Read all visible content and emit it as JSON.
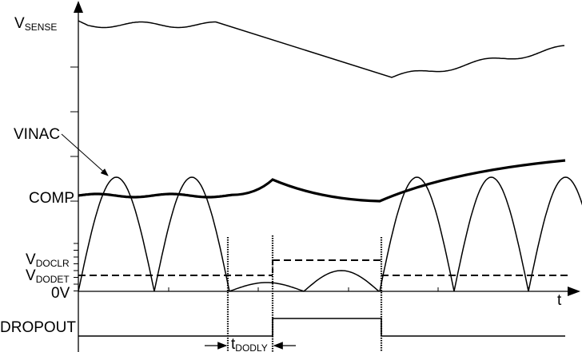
{
  "labels": {
    "vsense_main": "V",
    "vsense_sub": "SENSE",
    "vinac": "VINAC",
    "comp": "COMP",
    "vdoclr_main": "V",
    "vdoclr_sub": "DOCLR",
    "vdodet_main": "V",
    "vdodet_sub": "DODET",
    "zero": "0V",
    "time_axis": "t",
    "dropout": "DROPOUT",
    "tdodly_main": "t",
    "tdodly_sub": "DODLY"
  },
  "colors": {
    "line": "#000000",
    "background": "#ffffff"
  }
}
